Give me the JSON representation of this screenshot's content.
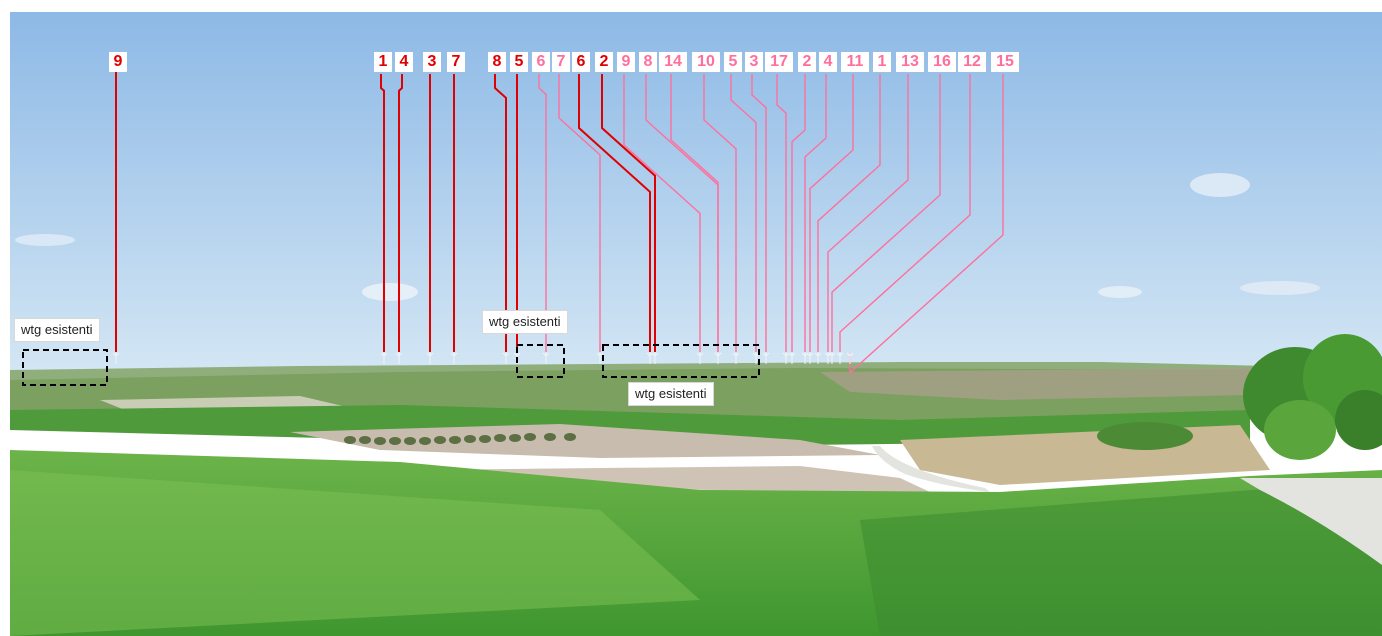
{
  "image": {
    "width": 1382,
    "height": 636,
    "sky_top": "#8db9e6",
    "sky_bottom": "#d3e6f4",
    "field_green": "#4fa23c",
    "field_light": "#7fc14f",
    "field_dark": "#3c8a2f",
    "soil": "#c9bcae",
    "tree_green": "#3f8a2e",
    "road": "#e3e3df"
  },
  "colors": {
    "existing": "#e00000",
    "new": "#ff6f9c"
  },
  "callouts": [
    {
      "id": "left",
      "text": "wtg esistenti"
    },
    {
      "id": "center",
      "text": "wtg esistenti"
    },
    {
      "id": "lower",
      "text": "wtg esistenti"
    }
  ],
  "turbines": [
    {
      "label": "9",
      "group": "existing"
    },
    {
      "label": "1",
      "group": "existing"
    },
    {
      "label": "4",
      "group": "existing"
    },
    {
      "label": "3",
      "group": "existing"
    },
    {
      "label": "7",
      "group": "existing"
    },
    {
      "label": "8",
      "group": "existing"
    },
    {
      "label": "5",
      "group": "existing"
    },
    {
      "label": "6",
      "group": "new"
    },
    {
      "label": "7",
      "group": "new"
    },
    {
      "label": "6",
      "group": "existing"
    },
    {
      "label": "2",
      "group": "existing"
    },
    {
      "label": "9",
      "group": "new"
    },
    {
      "label": "8",
      "group": "new"
    },
    {
      "label": "14",
      "group": "new"
    },
    {
      "label": "10",
      "group": "new"
    },
    {
      "label": "5",
      "group": "new"
    },
    {
      "label": "3",
      "group": "new"
    },
    {
      "label": "17",
      "group": "new"
    },
    {
      "label": "2",
      "group": "new"
    },
    {
      "label": "4",
      "group": "new"
    },
    {
      "label": "11",
      "group": "new"
    },
    {
      "label": "1",
      "group": "new"
    },
    {
      "label": "13",
      "group": "new"
    },
    {
      "label": "16",
      "group": "new"
    },
    {
      "label": "12",
      "group": "new"
    },
    {
      "label": "15",
      "group": "new"
    }
  ]
}
